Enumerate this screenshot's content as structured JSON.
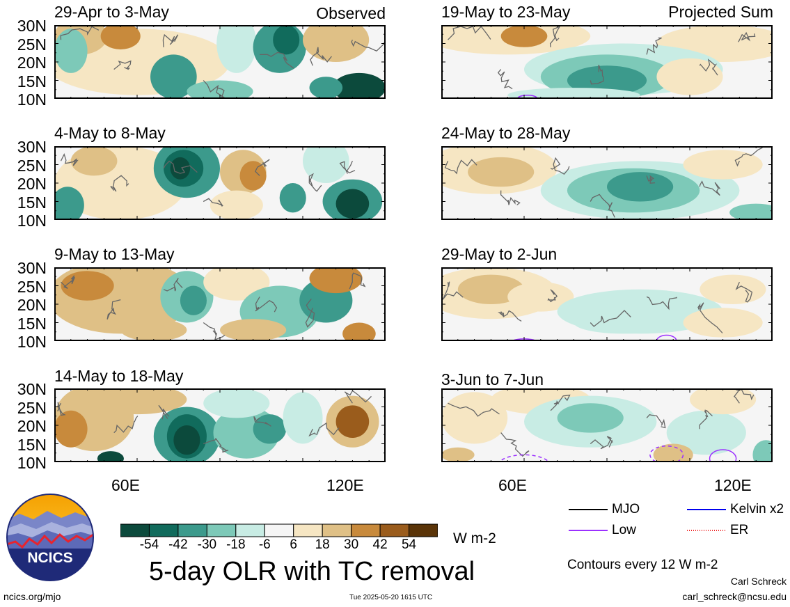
{
  "panels": {
    "observed": [
      {
        "dates": "29-Apr to 3-May"
      },
      {
        "dates": "4-May to 8-May"
      },
      {
        "dates": "9-May to 13-May"
      },
      {
        "dates": "14-May to 18-May"
      }
    ],
    "projected": [
      {
        "dates": "19-May to 23-May"
      },
      {
        "dates": "24-May to 28-May"
      },
      {
        "dates": "29-May to 2-Jun"
      },
      {
        "dates": "3-Jun to 7-Jun"
      }
    ],
    "observed_tag": "Observed",
    "projected_tag": "Projected Sum"
  },
  "axes": {
    "lat_labels": [
      "30N",
      "25N",
      "20N",
      "15N",
      "10N"
    ],
    "lon_labels": [
      "60E",
      "120E"
    ]
  },
  "colorbar": {
    "colors": [
      "#0c4a3c",
      "#116b5c",
      "#3c9a8c",
      "#7dc9b8",
      "#c8ece4",
      "#f5f5f5",
      "#f6e6c3",
      "#dfc086",
      "#c88a3c",
      "#9a5c1c",
      "#5a3408"
    ],
    "labels": [
      "-54",
      "-42",
      "-30",
      "-18",
      "-6",
      "6",
      "18",
      "30",
      "42",
      "54"
    ],
    "unit": "W m-2"
  },
  "legend": {
    "items": [
      {
        "label": "MJO",
        "color": "#000000",
        "style": "solid"
      },
      {
        "label": "Kelvin x2",
        "color": "#0000ee",
        "style": "solid"
      },
      {
        "label": "Low",
        "color": "#9b30ff",
        "style": "solid"
      },
      {
        "label": "ER",
        "color": "#ee2222",
        "style": "dotted"
      }
    ],
    "contour_note": "Contours every 12 W m-2"
  },
  "logo": {
    "text": "NCICS"
  },
  "main_title": "5-day OLR with TC removal",
  "footer": {
    "url": "ncics.org/mjo",
    "timestamp": "Tue 2025-05-20 1615 UTC",
    "author": "Carl Schreck",
    "email": "carl_schreck@ncsu.edu"
  }
}
